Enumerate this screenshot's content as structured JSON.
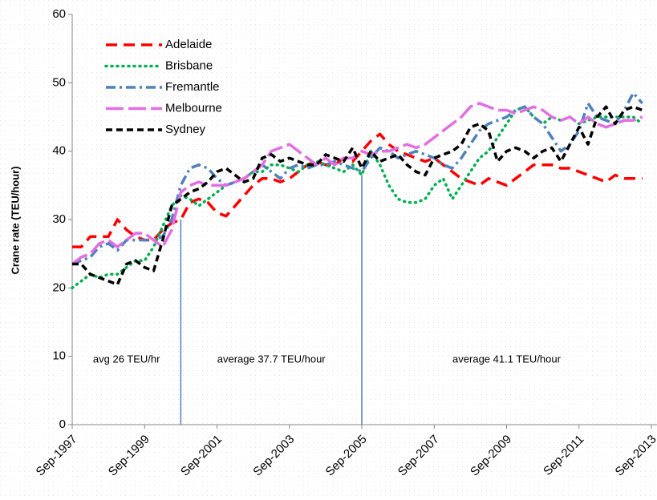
{
  "chart_data": {
    "type": "line",
    "y_label": "Crane rate (TEU/hour)",
    "categories": [
      "Sep-1997",
      null,
      null,
      null,
      null,
      null,
      null,
      null,
      "Sep-1999",
      null,
      null,
      null,
      null,
      null,
      null,
      null,
      "Sep-2001",
      null,
      null,
      null,
      null,
      null,
      null,
      null,
      "Sep-2003",
      null,
      null,
      null,
      null,
      null,
      null,
      null,
      "Sep-2005",
      null,
      null,
      null,
      null,
      null,
      null,
      null,
      "Sep-2007",
      null,
      null,
      null,
      null,
      null,
      null,
      null,
      "Sep-2009",
      null,
      null,
      null,
      null,
      null,
      null,
      null,
      "Sep-2011",
      null,
      null,
      null,
      null,
      null,
      null,
      null,
      "Sep-2013"
    ],
    "series": [
      {
        "name": "Adelaide",
        "color": "#ff0000",
        "values": [
          26,
          26,
          27.5,
          27.5,
          27.5,
          30,
          28.5,
          27.5,
          27,
          27,
          28.5,
          29.5,
          30,
          32.5,
          33,
          32.5,
          31,
          30.5,
          32,
          33.5,
          35,
          36,
          36,
          35.5,
          36,
          37,
          38,
          38.5,
          38,
          38,
          39,
          38.5,
          40,
          41.5,
          42.5,
          41,
          40,
          39.5,
          39,
          38.5,
          39,
          38,
          37,
          36,
          35.5,
          35,
          36,
          35.5,
          35,
          36,
          37,
          38,
          38,
          38,
          37.5,
          37.5,
          37,
          36.5,
          36,
          35.5,
          36.5,
          36,
          36,
          36,
          null
        ]
      },
      {
        "name": "Brisbane",
        "color": "#00b050",
        "values": [
          20,
          21,
          22,
          21.5,
          22,
          22,
          23,
          24,
          24,
          26,
          29,
          32,
          33.5,
          33,
          32,
          33,
          34,
          35,
          35.5,
          36,
          37,
          37,
          38,
          38,
          37.5,
          37,
          38,
          38.5,
          38,
          37.5,
          37,
          38,
          36.5,
          40,
          38,
          35,
          33,
          32.5,
          32.5,
          33,
          35,
          36,
          33,
          35,
          37,
          39,
          40,
          42,
          44,
          46,
          46.5,
          45,
          44,
          45,
          44.5,
          45,
          44,
          44.5,
          45,
          45,
          45,
          45,
          45,
          44,
          null
        ]
      },
      {
        "name": "Fremantle",
        "color": "#4f81bd",
        "values": [
          23.5,
          24,
          24.5,
          26,
          26.5,
          25.5,
          27,
          27,
          27,
          27,
          27.5,
          30,
          35,
          37.5,
          38,
          37.5,
          36,
          35,
          35.5,
          36,
          37,
          38,
          37,
          36,
          37.5,
          38,
          37.5,
          38,
          38,
          38.5,
          38,
          37.5,
          37,
          39,
          40.5,
          40,
          39,
          39.5,
          40,
          39.5,
          39,
          38,
          37.5,
          39,
          41,
          43,
          44,
          44.5,
          45,
          46,
          46.5,
          45,
          44,
          42,
          40,
          41,
          43,
          47,
          45,
          44.5,
          44,
          46,
          48.5,
          47,
          null
        ]
      },
      {
        "name": "Melbourne",
        "color": "#e36de3",
        "values": [
          23.5,
          24.5,
          25,
          26.5,
          27,
          26,
          27,
          28,
          28,
          27,
          26,
          28.5,
          34,
          35,
          35.5,
          35,
          35,
          35,
          35.5,
          36,
          37,
          38,
          40,
          40.5,
          41,
          40,
          39,
          38,
          39,
          38,
          39,
          39,
          40,
          39.5,
          40,
          40,
          40.5,
          41,
          40.5,
          41,
          42,
          43,
          44,
          45,
          46.5,
          47,
          46.5,
          46,
          46,
          45.5,
          46,
          46.5,
          46,
          45,
          44.5,
          45,
          44,
          45,
          44,
          43.5,
          44,
          44.5,
          44.5,
          45,
          null
        ]
      },
      {
        "name": "Sydney",
        "color": "#000000",
        "values": [
          23.5,
          23.5,
          22,
          21.5,
          21,
          20.5,
          23.5,
          24,
          23,
          22.5,
          27,
          32,
          33,
          34,
          34.5,
          35.5,
          37,
          37.5,
          36.5,
          35.5,
          36,
          39,
          39.5,
          38.5,
          39,
          38.5,
          38,
          38,
          39.5,
          39,
          38.5,
          40.5,
          37.5,
          40,
          38.5,
          39,
          39.5,
          38,
          37,
          36.5,
          39,
          39.5,
          40,
          41,
          43.5,
          44,
          43,
          38.5,
          40,
          40.5,
          40,
          39,
          40,
          40.5,
          38.5,
          41,
          43.5,
          41,
          45,
          46.5,
          44,
          46,
          46.5,
          46,
          null
        ]
      }
    ],
    "annotations": [
      {
        "text": "avg 26 TEU/hr",
        "from": 0,
        "to": 12
      },
      {
        "text": "average 37.7 TEU/hour",
        "from": 12,
        "to": 32
      },
      {
        "text": "average 41.1 TEU/hour",
        "from": 32,
        "to": 64
      }
    ],
    "ylim": [
      0,
      60
    ],
    "yticks": [
      0,
      10,
      20,
      30,
      40,
      50,
      60
    ],
    "legend": "upper-left",
    "grid": false
  }
}
